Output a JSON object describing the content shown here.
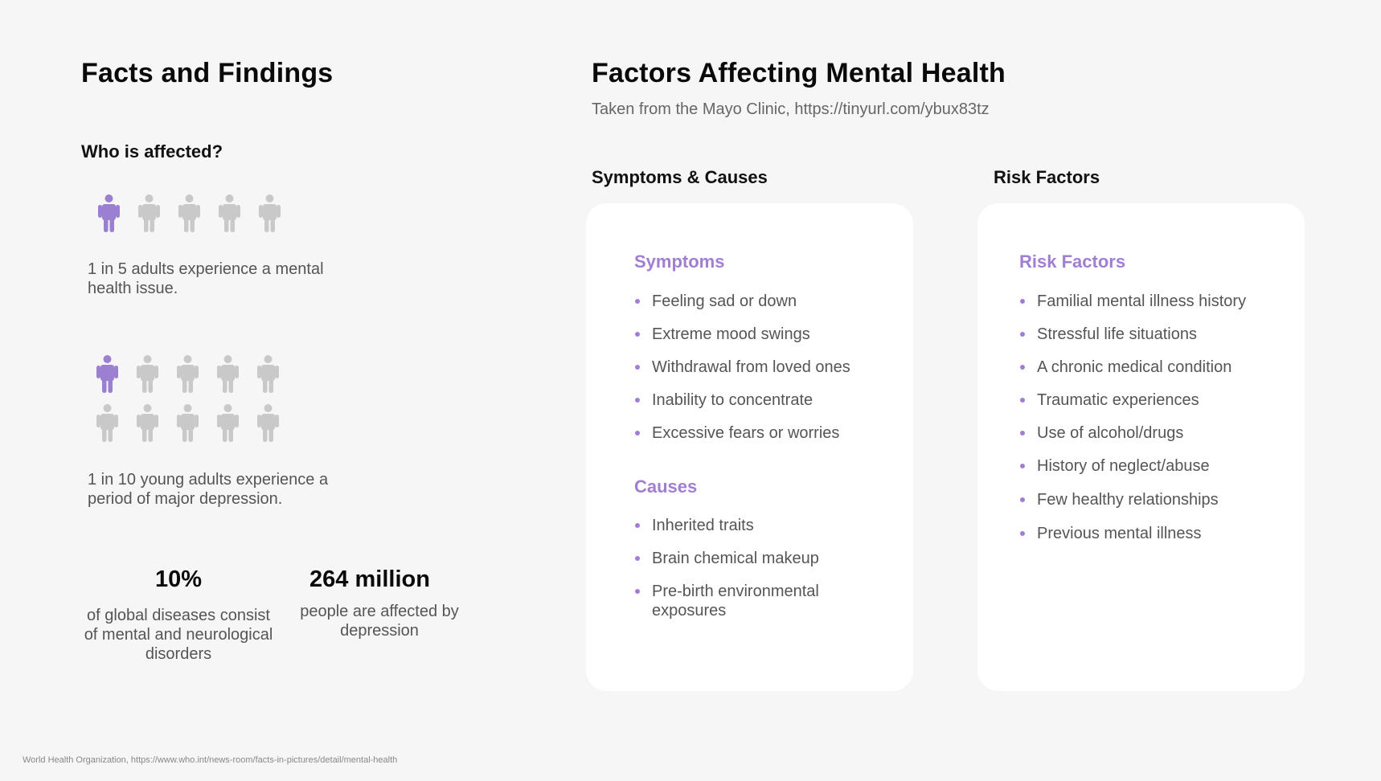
{
  "left": {
    "title": "Facts and Findings",
    "who_heading": "Who is affected?",
    "stat1_caption": "1 in 5 adults experience a mental health issue.",
    "stat2_caption": "1 in 10 young adults experience a period of major depression.",
    "big_stats": [
      {
        "value": "10%",
        "text": "of global diseases consist of mental and neurological disorders"
      },
      {
        "value": "264 million",
        "text": "people are affected by depression"
      }
    ]
  },
  "right": {
    "title": "Factors Affecting Mental Health",
    "subtitle": "Taken from the Mayo Clinic, https://tinyurl.com/ybux83tz",
    "col1_heading": "Symptoms & Causes",
    "col2_heading": "Risk Factors",
    "symptoms_heading": "Symptoms",
    "symptoms": [
      "Feeling sad or down",
      "Extreme mood swings",
      "Withdrawal from loved ones",
      "Inability to concentrate",
      "Excessive fears or worries"
    ],
    "causes_heading": "Causes",
    "causes": [
      "Inherited traits",
      "Brain chemical makeup",
      "Pre-birth environmental exposures"
    ],
    "risk_heading": "Risk Factors",
    "risks": [
      "Familial mental illness history",
      "Stressful life situations",
      "A chronic medical condition",
      "Traumatic experiences",
      "Use of alcohol/drugs",
      "History of neglect/abuse",
      "Few healthy relationships",
      "Previous mental illness"
    ]
  },
  "footer": "World Health Organization, https://www.who.int/news-room/facts-in-pictures/detail/mental-health",
  "colors": {
    "accent": "#a07fd3",
    "person_inactive": "#c9c9c9",
    "person_active": "#9b7fd1"
  },
  "icons": {
    "person": "person-icon"
  }
}
